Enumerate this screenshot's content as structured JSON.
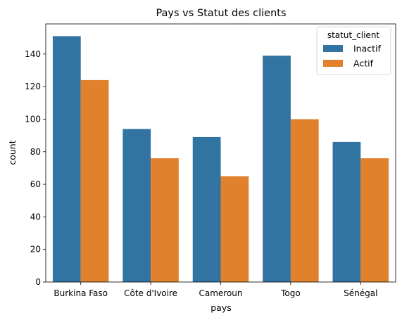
{
  "chart_data": {
    "type": "bar",
    "title": "Pays vs Statut des clients",
    "xlabel": "pays",
    "ylabel": "count",
    "categories": [
      "Burkina Faso",
      "Côte d'Ivoire",
      "Cameroun",
      "Togo",
      "Sénégal"
    ],
    "series": [
      {
        "name": "Inactif",
        "values": [
          151,
          94,
          89,
          139,
          86
        ],
        "color": "#3274a1"
      },
      {
        "name": "Actif",
        "values": [
          124,
          76,
          65,
          100,
          76
        ],
        "color": "#e1812c"
      }
    ],
    "ylim": [
      0,
      158.5
    ],
    "yticks": [
      0,
      20,
      40,
      60,
      80,
      100,
      120,
      140
    ],
    "grid": false,
    "legend": {
      "title": "statut_client",
      "placement": "top-right"
    }
  }
}
